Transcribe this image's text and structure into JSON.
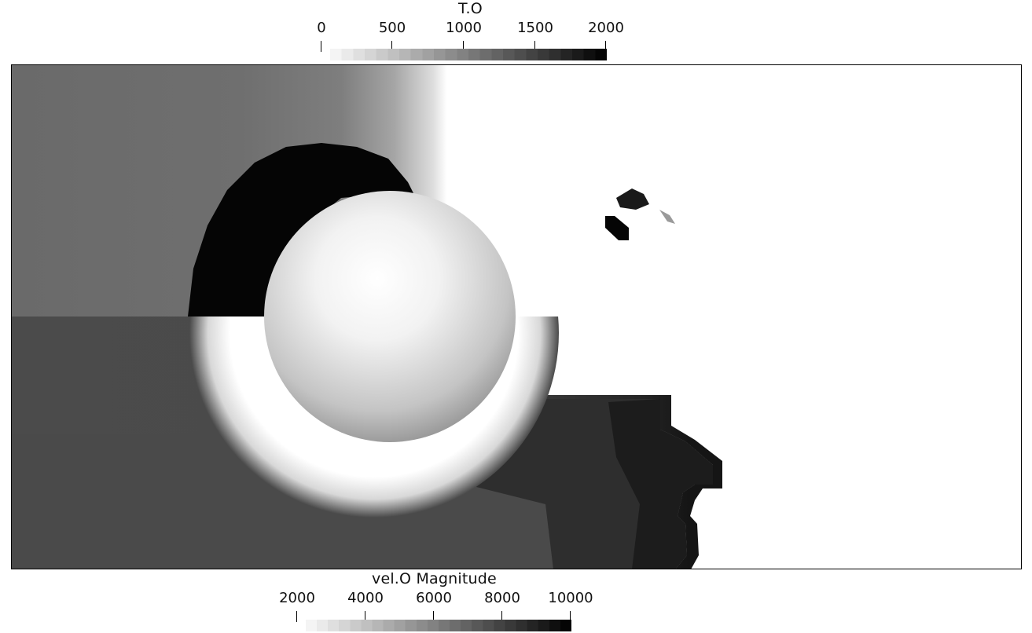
{
  "top_colorbar": {
    "title": "T.O",
    "ticks": [
      "0",
      "500",
      "1000",
      "1500",
      "2000"
    ],
    "range": [
      0,
      2000
    ],
    "gradient": {
      "low": "#f4f4f4",
      "high": "#050505",
      "steps": 24
    }
  },
  "bottom_colorbar": {
    "title": "vel.O Magnitude",
    "ticks": [
      "2000",
      "4000",
      "6000",
      "8000",
      "10000"
    ],
    "range": [
      2000,
      10000
    ],
    "gradient": {
      "low": "#f4f4f4",
      "high": "#050505",
      "steps": 24
    }
  },
  "colors": {
    "background": "#ffffff",
    "frame": "#000000",
    "upper_field_gray": "#6f6f6f",
    "lower_field_gray": "#4a4a4a",
    "shock_black": "#050505",
    "sphere_highlight": "#ffffff",
    "sphere_shadow": "#8c8c8c"
  }
}
